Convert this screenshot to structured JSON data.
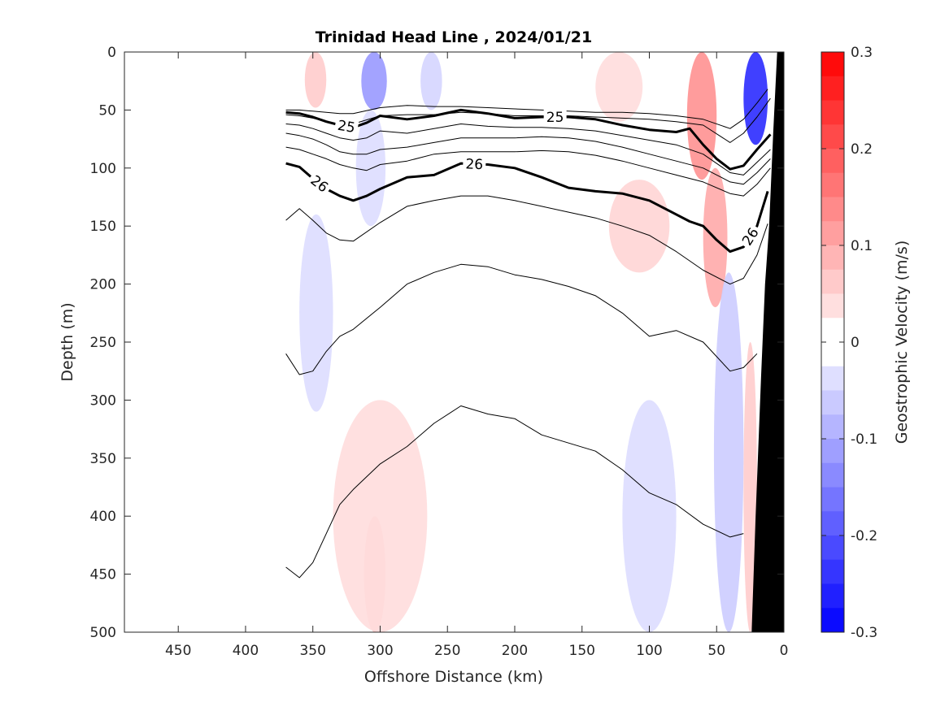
{
  "chart_data": {
    "type": "contour",
    "title": "Trinidad Head Line , 2024/01/21",
    "xlabel": "Offshore Distance (km)",
    "ylabel": "Depth (m)",
    "colorbar_label": "Geostrophic Velocity (m/s)",
    "xlim": [
      490,
      0
    ],
    "ylim": [
      500,
      0
    ],
    "x_ticks": [
      450,
      400,
      350,
      300,
      250,
      200,
      150,
      100,
      50,
      0
    ],
    "x_tick_labels": [
      "450",
      "400",
      "350",
      "300",
      "250",
      "200",
      "150",
      "100",
      "50",
      "0"
    ],
    "y_ticks": [
      0,
      50,
      100,
      150,
      200,
      250,
      300,
      350,
      400,
      450,
      500
    ],
    "y_tick_labels": [
      "0",
      "50",
      "100",
      "150",
      "200",
      "250",
      "300",
      "350",
      "400",
      "450",
      "500"
    ],
    "colorbar": {
      "range": [
        -0.3,
        0.3
      ],
      "step": 0.025,
      "ticks": [
        0.3,
        0.2,
        0.1,
        0,
        -0.1,
        -0.2,
        -0.3
      ],
      "tick_labels": [
        "0.3",
        "0.2",
        "0.1",
        "0",
        "-0.1",
        "-0.2",
        "-0.3"
      ],
      "neg_color": "#0000ff",
      "pos_color": "#ff0000",
      "zero_color": "#ffffff"
    },
    "velocity_patches": [
      {
        "v": 0.06,
        "x0": 356,
        "x1": 340,
        "d0": 0,
        "d1": 48
      },
      {
        "v": -0.12,
        "x0": 314,
        "x1": 295,
        "d0": 0,
        "d1": 50
      },
      {
        "v": -0.05,
        "x0": 270,
        "x1": 254,
        "d0": 0,
        "d1": 50
      },
      {
        "v": -0.04,
        "x0": 318,
        "x1": 296,
        "d0": 50,
        "d1": 150
      },
      {
        "v": 0.05,
        "x0": 130,
        "x1": 85,
        "d0": 110,
        "d1": 190
      },
      {
        "v": 0.04,
        "x0": 140,
        "x1": 105,
        "d0": 0,
        "d1": 60
      },
      {
        "v": 0.13,
        "x0": 72,
        "x1": 50,
        "d0": 0,
        "d1": 110
      },
      {
        "v": 0.1,
        "x0": 60,
        "x1": 42,
        "d0": 100,
        "d1": 220
      },
      {
        "v": -0.25,
        "x0": 30,
        "x1": 12,
        "d0": 0,
        "d1": 80
      },
      {
        "v": -0.04,
        "x0": 360,
        "x1": 335,
        "d0": 140,
        "d1": 310
      },
      {
        "v": 0.07,
        "x0": 312,
        "x1": 296,
        "d0": 400,
        "d1": 500
      },
      {
        "v": 0.04,
        "x0": 335,
        "x1": 265,
        "d0": 300,
        "d1": 500
      },
      {
        "v": -0.04,
        "x0": 120,
        "x1": 80,
        "d0": 300,
        "d1": 500
      },
      {
        "v": -0.06,
        "x0": 52,
        "x1": 30,
        "d0": 190,
        "d1": 500
      },
      {
        "v": 0.06,
        "x0": 30,
        "x1": 20,
        "d0": 250,
        "d1": 500
      }
    ],
    "density_contours": [
      {
        "sigma": "",
        "width": 1,
        "x": [
          370,
          360,
          350,
          340,
          330,
          320,
          300,
          280,
          260,
          240,
          220,
          200,
          180,
          160,
          140,
          120,
          100,
          80,
          60,
          40,
          30,
          20,
          12
        ],
        "depth": [
          50,
          50,
          51,
          52,
          53,
          53,
          48,
          46,
          47,
          47,
          48,
          49,
          50,
          51,
          52,
          52,
          53,
          55,
          58,
          66,
          58,
          44,
          32
        ]
      },
      {
        "sigma": "",
        "width": 1,
        "x": [
          370,
          360,
          350,
          340,
          330,
          320,
          300,
          280,
          260,
          240,
          220,
          200,
          180,
          160,
          140,
          120,
          100,
          80,
          60,
          40,
          30,
          20,
          10
        ],
        "depth": [
          54,
          55,
          57,
          60,
          62,
          62,
          55,
          54,
          54,
          52,
          53,
          55,
          55,
          55,
          56,
          57,
          58,
          60,
          63,
          78,
          70,
          56,
          40
        ]
      },
      {
        "sigma": "25",
        "width": 3,
        "x": [
          370,
          360,
          350,
          340,
          330,
          320,
          310,
          300,
          280,
          260,
          240,
          220,
          200,
          180,
          160,
          140,
          120,
          100,
          80,
          70,
          60,
          50,
          40,
          30,
          20,
          10
        ],
        "depth": [
          52,
          53,
          56,
          60,
          63,
          65,
          61,
          55,
          58,
          55,
          50,
          53,
          57,
          56,
          56,
          58,
          63,
          67,
          69,
          66,
          80,
          92,
          101,
          98,
          84,
          71
        ]
      },
      {
        "sigma": "",
        "width": 1,
        "x": [
          370,
          360,
          350,
          340,
          330,
          320,
          310,
          300,
          280,
          260,
          240,
          220,
          200,
          180,
          160,
          140,
          120,
          100,
          80,
          60,
          40,
          30,
          20,
          10
        ],
        "depth": [
          62,
          63,
          66,
          70,
          74,
          76,
          74,
          68,
          70,
          66,
          62,
          64,
          65,
          65,
          66,
          68,
          72,
          76,
          80,
          88,
          104,
          106,
          95,
          84
        ]
      },
      {
        "sigma": "",
        "width": 1,
        "x": [
          370,
          360,
          350,
          340,
          330,
          320,
          310,
          300,
          280,
          260,
          240,
          220,
          200,
          180,
          160,
          140,
          120,
          100,
          80,
          60,
          40,
          30,
          20,
          10
        ],
        "depth": [
          70,
          72,
          75,
          80,
          86,
          88,
          88,
          84,
          82,
          78,
          74,
          74,
          74,
          73,
          74,
          77,
          82,
          88,
          94,
          100,
          112,
          114,
          104,
          92
        ]
      },
      {
        "sigma": "",
        "width": 1,
        "x": [
          370,
          360,
          350,
          340,
          330,
          320,
          310,
          300,
          280,
          260,
          240,
          220,
          200,
          180,
          160,
          140,
          120,
          100,
          80,
          60,
          40,
          30,
          20,
          10
        ],
        "depth": [
          82,
          84,
          88,
          92,
          97,
          100,
          102,
          97,
          94,
          88,
          86,
          86,
          86,
          85,
          86,
          89,
          94,
          100,
          106,
          112,
          122,
          124,
          114,
          100
        ]
      },
      {
        "sigma": "26",
        "width": 3,
        "x": [
          370,
          360,
          350,
          340,
          330,
          320,
          310,
          300,
          280,
          260,
          240,
          220,
          200,
          180,
          160,
          140,
          120,
          100,
          80,
          70,
          60,
          50,
          40,
          30,
          20,
          12
        ],
        "depth": [
          96,
          99,
          109,
          118,
          124,
          128,
          124,
          118,
          108,
          106,
          96,
          97,
          100,
          108,
          117,
          120,
          122,
          128,
          140,
          146,
          150,
          162,
          172,
          168,
          150,
          120
        ]
      },
      {
        "sigma": "",
        "width": 1,
        "x": [
          370,
          360,
          350,
          340,
          330,
          320,
          300,
          280,
          260,
          240,
          220,
          200,
          180,
          160,
          140,
          120,
          100,
          80,
          60,
          40,
          30,
          20,
          12
        ],
        "depth": [
          145,
          135,
          145,
          156,
          162,
          163,
          147,
          133,
          128,
          124,
          124,
          128,
          133,
          138,
          143,
          150,
          158,
          172,
          188,
          200,
          195,
          175,
          148
        ]
      },
      {
        "sigma": "",
        "width": 1,
        "x": [
          370,
          360,
          350,
          340,
          330,
          320,
          300,
          280,
          260,
          240,
          220,
          200,
          180,
          160,
          140,
          120,
          100,
          80,
          60,
          40,
          30,
          20
        ],
        "depth": [
          260,
          278,
          275,
          258,
          245,
          239,
          220,
          200,
          190,
          183,
          185,
          192,
          196,
          202,
          210,
          225,
          245,
          240,
          250,
          275,
          272,
          260
        ]
      },
      {
        "sigma": "",
        "width": 1,
        "x": [
          370,
          360,
          350,
          340,
          330,
          320,
          300,
          280,
          260,
          240,
          220,
          200,
          180,
          160,
          140,
          120,
          100,
          80,
          60,
          40,
          30
        ],
        "depth": [
          444,
          453,
          440,
          415,
          390,
          377,
          355,
          340,
          320,
          305,
          312,
          316,
          330,
          337,
          344,
          360,
          380,
          390,
          407,
          418,
          415
        ]
      }
    ],
    "bathymetry": {
      "x": [
        5,
        8,
        11,
        14,
        17,
        21,
        24
      ],
      "depth": [
        0,
        70,
        150,
        200,
        280,
        400,
        500
      ]
    }
  }
}
